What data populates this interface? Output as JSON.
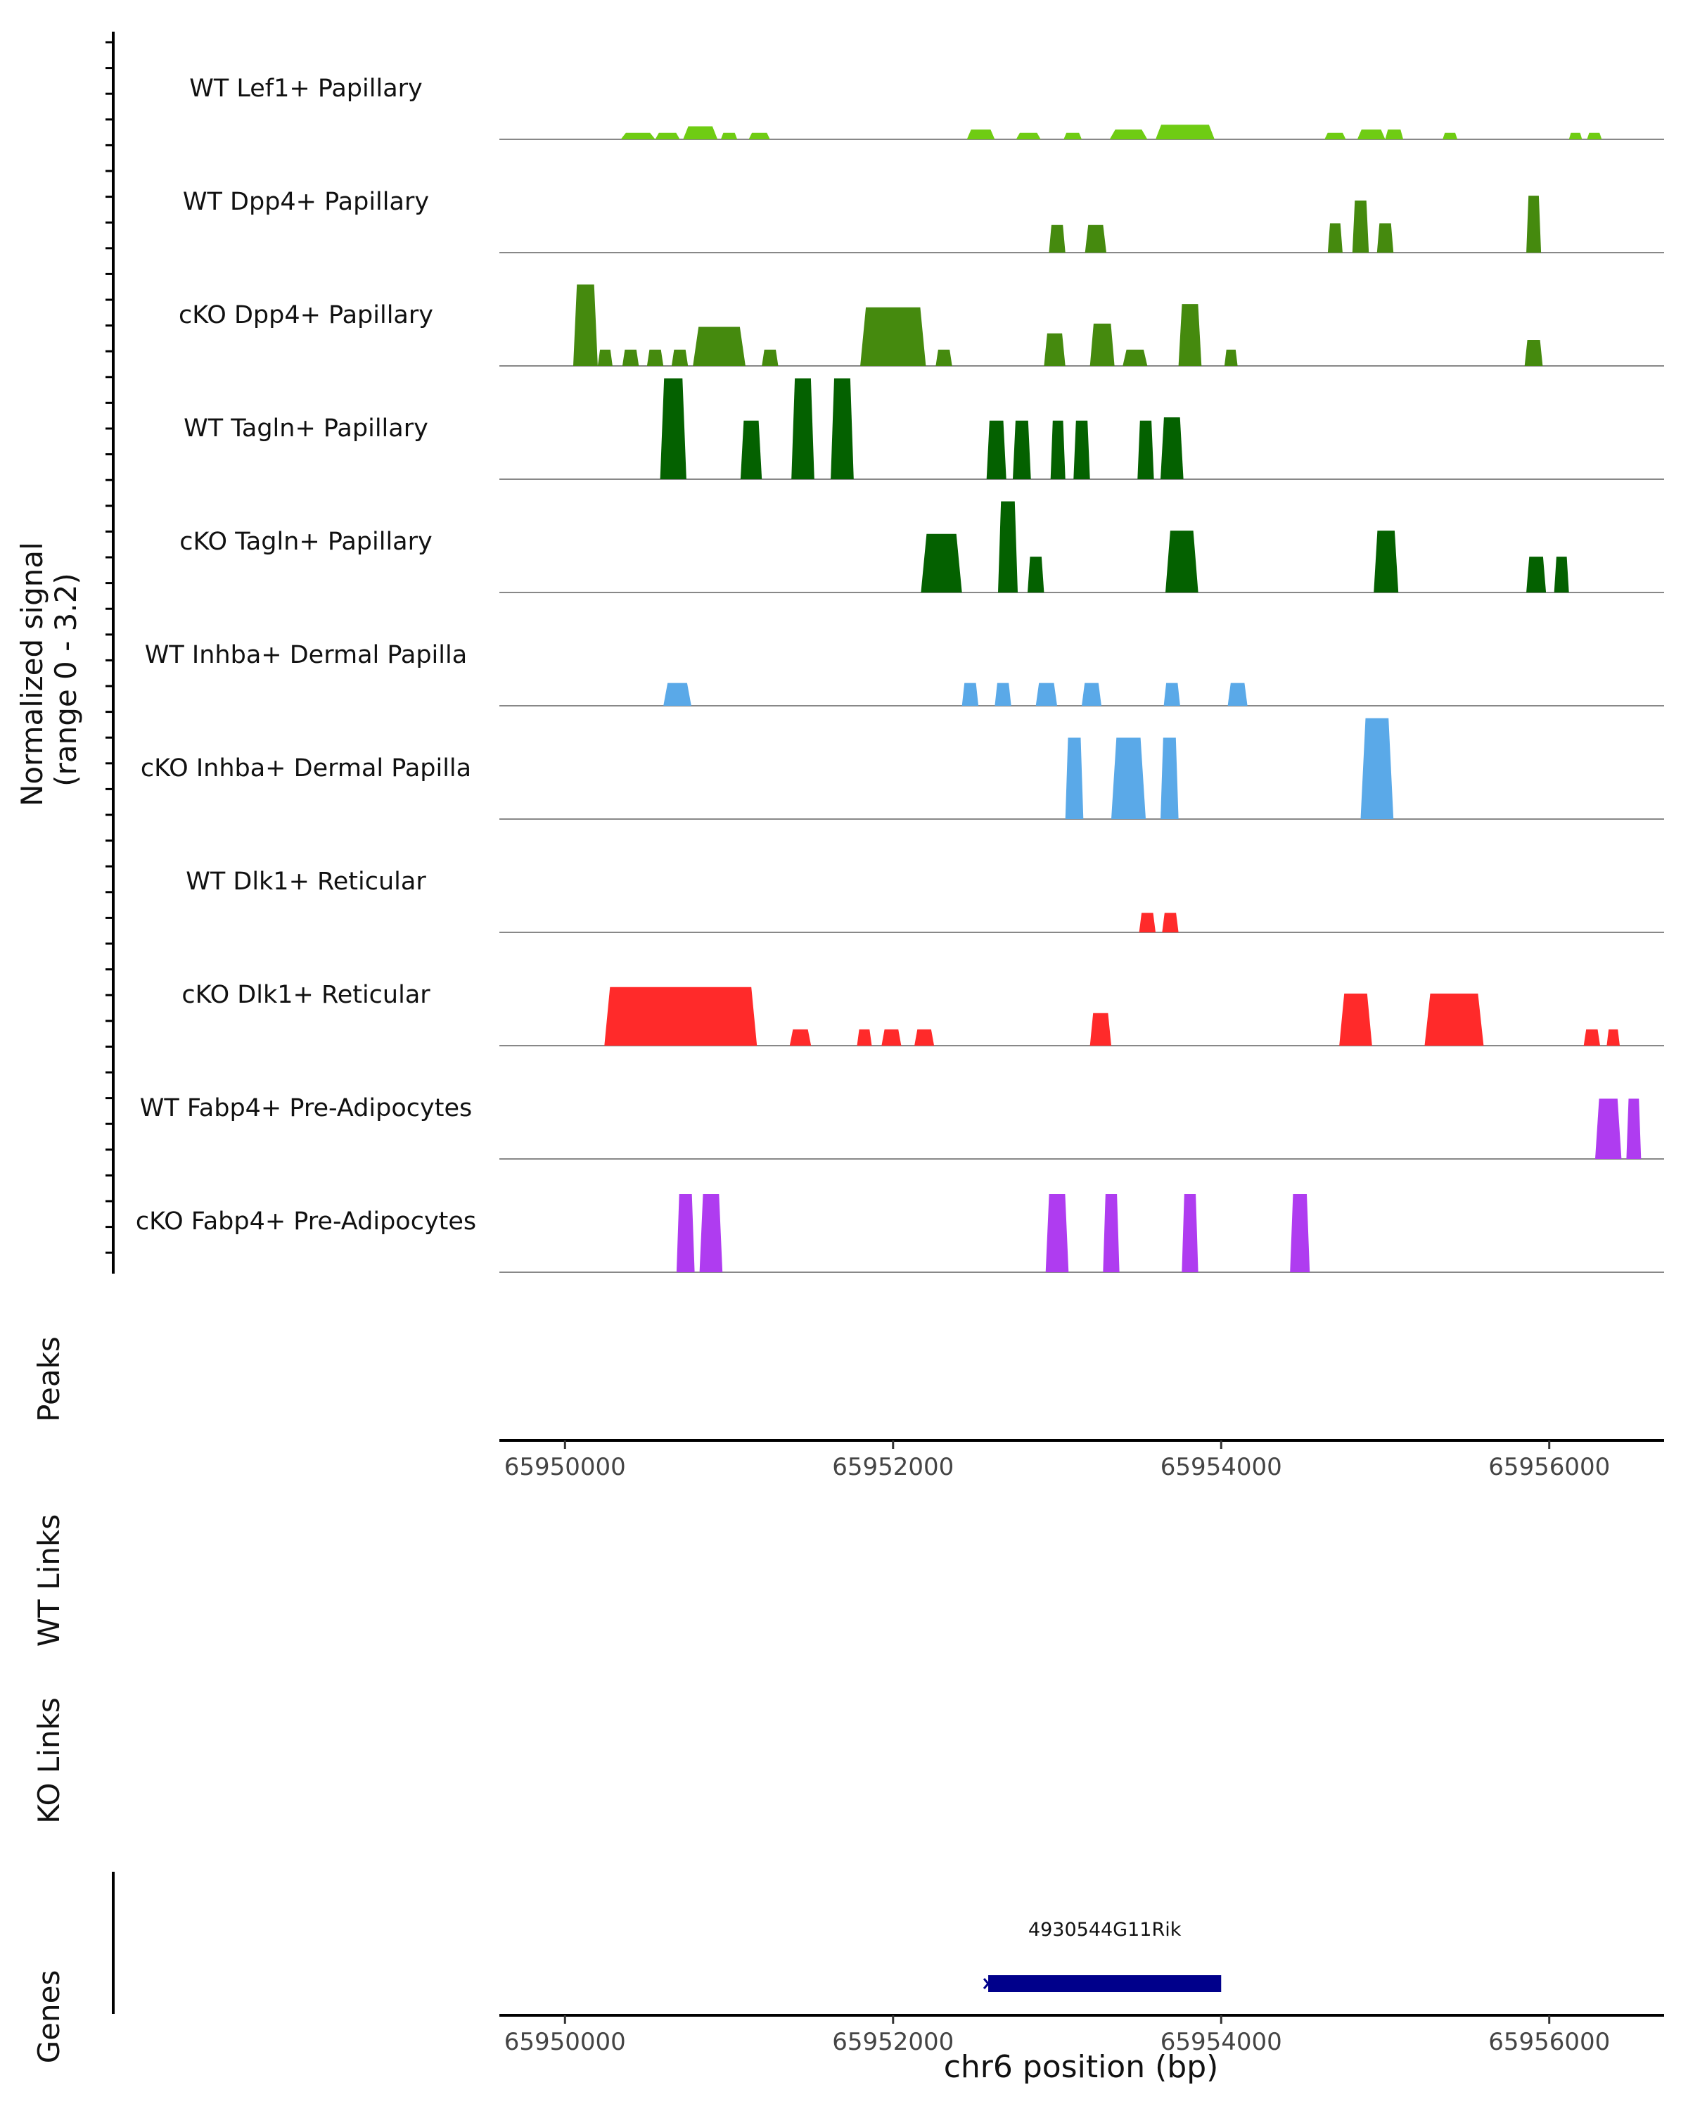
{
  "chart_data": {
    "type": "area",
    "title": "",
    "ylabel": "Normalized signal\n(range 0 - 3.2)",
    "xlabel": "chr6 position (bp)",
    "ylim": [
      0,
      3.2
    ],
    "xlim": [
      65949600,
      65956700
    ],
    "x_ticks": [
      65950000,
      65952000,
      65954000,
      65956000
    ],
    "x_tick_labels": [
      "65950000",
      "65952000",
      "65954000",
      "65956000"
    ],
    "panel_labels": {
      "peaks": "Peaks",
      "wt_links": "WT Links",
      "ko_links": "KO Links",
      "genes": "Genes"
    },
    "tracks": [
      {
        "name": "WT Lef1+ Papillary",
        "color": "#6fcc13",
        "regions": [
          [
            65950340,
            65950550,
            0.2
          ],
          [
            65950550,
            65950700,
            0.2
          ],
          [
            65950720,
            65950930,
            0.4
          ],
          [
            65950950,
            65951050,
            0.2
          ],
          [
            65951120,
            65951250,
            0.2
          ],
          [
            65952450,
            65952620,
            0.3
          ],
          [
            65952750,
            65952900,
            0.2
          ],
          [
            65953040,
            65953150,
            0.2
          ],
          [
            65953320,
            65953550,
            0.3
          ],
          [
            65953600,
            65953960,
            0.45
          ],
          [
            65954630,
            65954760,
            0.2
          ],
          [
            65954830,
            65955000,
            0.3
          ],
          [
            65955000,
            65955110,
            0.3
          ],
          [
            65955350,
            65955440,
            0.2
          ],
          [
            65956120,
            65956200,
            0.2
          ],
          [
            65956230,
            65956320,
            0.2
          ]
        ]
      },
      {
        "name": "WT Dpp4+ Papillary",
        "color": "#458a0e",
        "regions": [
          [
            65952950,
            65953050,
            0.85
          ],
          [
            65953170,
            65953300,
            0.85
          ],
          [
            65954650,
            65954740,
            0.9
          ],
          [
            65954800,
            65954900,
            1.6
          ],
          [
            65954950,
            65955050,
            0.9
          ],
          [
            65955860,
            65955950,
            1.75
          ]
        ]
      },
      {
        "name": "cKO Dpp4+ Papillary",
        "color": "#458a0e",
        "regions": [
          [
            65950050,
            65950200,
            2.5
          ],
          [
            65950200,
            65950290,
            0.5
          ],
          [
            65950350,
            65950450,
            0.5
          ],
          [
            65950500,
            65950600,
            0.5
          ],
          [
            65950650,
            65950750,
            0.5
          ],
          [
            65950780,
            65951100,
            1.2
          ],
          [
            65951200,
            65951300,
            0.5
          ],
          [
            65951800,
            65952200,
            1.8
          ],
          [
            65952260,
            65952360,
            0.5
          ],
          [
            65952920,
            65953050,
            1.0
          ],
          [
            65953200,
            65953350,
            1.3
          ],
          [
            65953400,
            65953550,
            0.5
          ],
          [
            65953740,
            65953880,
            1.9
          ],
          [
            65954020,
            65954100,
            0.5
          ],
          [
            65955850,
            65955960,
            0.8
          ]
        ]
      },
      {
        "name": "WT Tagln+ Papillary",
        "color": "#046100",
        "regions": [
          [
            65950580,
            65950740,
            3.1
          ],
          [
            65951070,
            65951200,
            1.8
          ],
          [
            65951380,
            65951520,
            3.1
          ],
          [
            65951620,
            65951760,
            3.1
          ],
          [
            65952570,
            65952690,
            1.8
          ],
          [
            65952730,
            65952840,
            1.8
          ],
          [
            65952960,
            65953050,
            1.8
          ],
          [
            65953100,
            65953200,
            1.8
          ],
          [
            65953490,
            65953590,
            1.8
          ],
          [
            65953630,
            65953770,
            1.9
          ]
        ]
      },
      {
        "name": "cKO Tagln+ Papillary",
        "color": "#046100",
        "regions": [
          [
            65952170,
            65952420,
            1.8
          ],
          [
            65952640,
            65952760,
            2.8
          ],
          [
            65952820,
            65952920,
            1.1
          ],
          [
            65953660,
            65953860,
            1.9
          ],
          [
            65954930,
            65955080,
            1.9
          ],
          [
            65955860,
            65955980,
            1.1
          ],
          [
            65956030,
            65956120,
            1.1
          ]
        ]
      },
      {
        "name": "WT Inhba+ Dermal Papilla",
        "color": "#5aa9e8",
        "regions": [
          [
            65950600,
            65950770,
            0.7
          ],
          [
            65952420,
            65952520,
            0.7
          ],
          [
            65952620,
            65952720,
            0.7
          ],
          [
            65952870,
            65953000,
            0.7
          ],
          [
            65953150,
            65953270,
            0.7
          ],
          [
            65953650,
            65953750,
            0.7
          ],
          [
            65954040,
            65954160,
            0.7
          ]
        ]
      },
      {
        "name": "cKO Inhba+ Dermal Papilla",
        "color": "#5aa9e8",
        "regions": [
          [
            65953050,
            65953160,
            2.5
          ],
          [
            65953330,
            65953540,
            2.5
          ],
          [
            65953630,
            65953740,
            2.5
          ],
          [
            65954850,
            65955050,
            3.1
          ]
        ]
      },
      {
        "name": "WT Dlk1+ Reticular",
        "color": "#ff2a2a",
        "regions": [
          [
            65953500,
            65953600,
            0.6
          ],
          [
            65953640,
            65953740,
            0.6
          ]
        ]
      },
      {
        "name": "cKO Dlk1+ Reticular",
        "color": "#ff2a2a",
        "regions": [
          [
            65950240,
            65951170,
            1.8
          ],
          [
            65951370,
            65951500,
            0.5
          ],
          [
            65951780,
            65951870,
            0.5
          ],
          [
            65951930,
            65952050,
            0.5
          ],
          [
            65952130,
            65952250,
            0.5
          ],
          [
            65953200,
            65953330,
            1.0
          ],
          [
            65954720,
            65954920,
            1.6
          ],
          [
            65955240,
            65955600,
            1.6
          ],
          [
            65956210,
            65956310,
            0.5
          ],
          [
            65956350,
            65956430,
            0.5
          ]
        ]
      },
      {
        "name": "WT Fabp4+ Pre-Adipocytes",
        "color": "#af3cf0",
        "regions": [
          [
            65956280,
            65956440,
            1.85
          ],
          [
            65956470,
            65956560,
            1.85
          ]
        ]
      },
      {
        "name": "cKO Fabp4+ Pre-Adipocytes",
        "color": "#af3cf0",
        "regions": [
          [
            65950680,
            65950790,
            2.4
          ],
          [
            65950820,
            65950960,
            2.4
          ],
          [
            65952930,
            65953070,
            2.4
          ],
          [
            65953280,
            65953380,
            2.4
          ],
          [
            65953760,
            65953860,
            2.4
          ],
          [
            65954420,
            65954540,
            2.4
          ]
        ]
      }
    ],
    "genes": [
      {
        "name": "4930544G11Rik",
        "start": 65952580,
        "end": 65954000,
        "strand": "-",
        "color": "#00008b"
      }
    ]
  }
}
